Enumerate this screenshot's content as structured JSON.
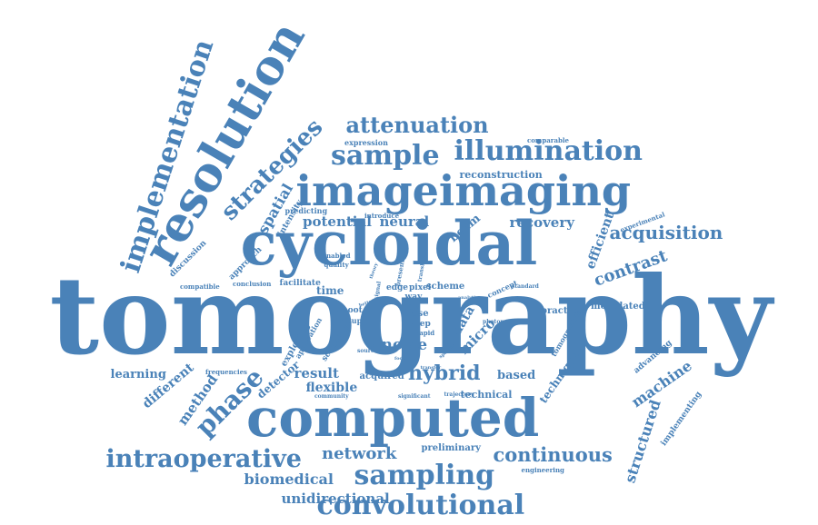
{
  "color": "#4a82b8",
  "words": [
    "tomography",
    "cycloidal",
    "computed",
    "resolution",
    "imageimaging",
    "implementation",
    "sample",
    "illumination",
    "attenuation",
    "strategies",
    "sampling",
    "convolutional",
    "intraoperative",
    "phase",
    "network",
    "continuous",
    "acquisition",
    "contrast",
    "hybrid",
    "noise",
    "recovery",
    "neural",
    "potential",
    "spatial",
    "reconstruction",
    "machine",
    "structured",
    "biomedical",
    "unidirectional",
    "efficient",
    "learning",
    "method",
    "different",
    "result",
    "flexible",
    "detector",
    "technique",
    "based",
    "micro",
    "data",
    "beam",
    "modulated",
    "practical",
    "technical",
    "preliminary",
    "acquired",
    "time",
    "facilitate",
    "scheme",
    "edge",
    "pixel",
    "expression",
    "comparable",
    "predicting",
    "introduce",
    "experimental",
    "intensity",
    "approach",
    "discussion",
    "compatible",
    "conclusion",
    "enabled",
    "quality",
    "exploring",
    "application",
    "frequencies",
    "community",
    "significant",
    "trajectory",
    "advancing",
    "implementing",
    "engineering",
    "tomographic",
    "concept",
    "standard",
    "shoot",
    "dose",
    "setup",
    "step",
    "ray",
    "rapid",
    "scanning",
    "tissue",
    "photon",
    "source",
    "way",
    "signal",
    "present",
    "translation",
    "transfer",
    "focal",
    "specific",
    "analytic",
    "better",
    "theory"
  ]
}
